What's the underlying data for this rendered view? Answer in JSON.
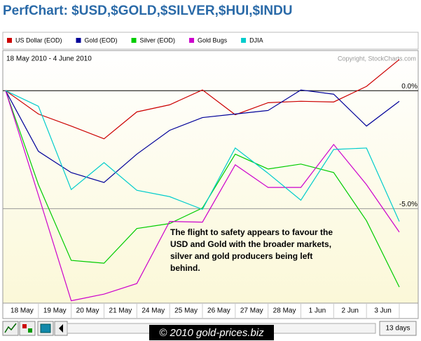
{
  "chart_data": {
    "type": "line",
    "title": "PerfChart: $USD,$GOLD,$SILVER,$HUI,$INDU",
    "subtitle": "18 May 2010 - 4 June 2010",
    "credit": "Copyright, StockCharts.com",
    "annotation": [
      "The flight to safety appears to favour the",
      "USD and Gold with the broader markets,",
      "silver and gold producers being left",
      "behind."
    ],
    "watermark": "© 2010 gold-prices.biz",
    "period_button": "13 days",
    "categories": [
      "18 May",
      "19 May",
      "20 May",
      "21 May",
      "24 May",
      "25 May",
      "26 May",
      "27 May",
      "28 May",
      "1 Jun",
      "2 Jun",
      "3 Jun",
      null
    ],
    "series": [
      {
        "name": "US Dollar (EOD)",
        "color": "#cc0000",
        "values": [
          0,
          -0.99,
          -1.5,
          -2.04,
          -0.9,
          -0.6,
          0.03,
          -1.02,
          -0.51,
          -0.45,
          -0.48,
          0.18,
          1.32
        ]
      },
      {
        "name": "Gold (EOD)",
        "color": "#000099",
        "values": [
          0,
          -2.57,
          -3.47,
          -3.89,
          -2.69,
          -1.68,
          -1.14,
          -0.99,
          -0.84,
          0.03,
          -0.15,
          -1.5,
          -0.45
        ]
      },
      {
        "name": "Silver (EOD)",
        "color": "#00cc00",
        "values": [
          0,
          -3.98,
          -7.19,
          -7.31,
          -5.84,
          -5.63,
          -4.97,
          -2.69,
          -3.32,
          -3.11,
          -3.47,
          -5.51,
          -8.32
        ]
      },
      {
        "name": "Gold Bugs",
        "color": "#cc00cc",
        "values": [
          0,
          -4.43,
          -8.9,
          -8.62,
          -8.17,
          -5.54,
          -5.57,
          -3.14,
          -4.1,
          -4.1,
          -2.28,
          -3.98,
          -5.99
        ]
      },
      {
        "name": "DJIA",
        "color": "#00cccc",
        "values": [
          0,
          -0.66,
          -4.19,
          -3.05,
          -4.22,
          -4.49,
          -5.03,
          -2.43,
          -3.5,
          -4.64,
          -2.49,
          -2.43,
          -5.54
        ]
      }
    ],
    "ylim": [
      -9,
      1.7
    ],
    "yticks": [
      {
        "value": 0,
        "label": "0.0%"
      },
      {
        "value": -5,
        "label": "-5.0%"
      }
    ],
    "grid": true
  }
}
